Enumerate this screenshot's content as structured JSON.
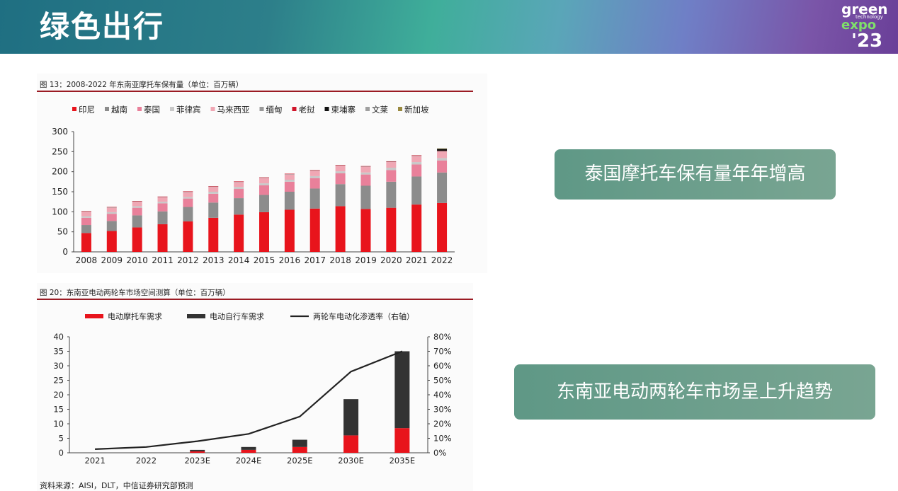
{
  "header": {
    "title": "绿色出行"
  },
  "logo": {
    "line1": "green",
    "line2": "technology",
    "line3": "expo",
    "line4": "'23"
  },
  "captions": {
    "first": "泰国摩托车保有量年年增高",
    "second": "东南亚电动两轮车市场呈上升趋势"
  },
  "source": "资料来源：AISI，DLT，中信证券研究部预测",
  "colors": {
    "印尼": "#e8141c",
    "越南": "#8c8c8c",
    "泰国": "#e9809a",
    "菲律宾": "#c8c8c8",
    "马来西亚": "#f0a7b4",
    "缅甸": "#999999",
    "老挝": "#d0152a",
    "柬埔寨": "#111111",
    "文莱": "#a0a0a0",
    "新加坡": "#9a8a40"
  },
  "chart_data": [
    {
      "type": "bar",
      "stacked": true,
      "title": "图 13：2008-2022 年东南亚摩托车保有量（单位：百万辆）",
      "ylim": [
        0,
        300
      ],
      "yticks": [
        0,
        50,
        100,
        150,
        200,
        250,
        300
      ],
      "categories": [
        "2008",
        "2009",
        "2010",
        "2011",
        "2012",
        "2013",
        "2014",
        "2015",
        "2016",
        "2017",
        "2018",
        "2019",
        "2020",
        "2021",
        "2022"
      ],
      "legend_position": "top",
      "series": [
        {
          "name": "印尼",
          "values": [
            47,
            52,
            61,
            69,
            76,
            85,
            93,
            99,
            105,
            108,
            114,
            107,
            110,
            118,
            122
          ]
        },
        {
          "name": "越南",
          "values": [
            20,
            25,
            30,
            32,
            36,
            38,
            41,
            43,
            45,
            50,
            55,
            58,
            65,
            70,
            76
          ]
        },
        {
          "name": "泰国",
          "values": [
            18,
            18,
            19,
            20,
            21,
            22,
            23,
            24,
            25,
            26,
            27,
            28,
            29,
            30,
            30
          ]
        },
        {
          "name": "菲律宾",
          "values": [
            4,
            4,
            4,
            4,
            4,
            5,
            5,
            5,
            5,
            5,
            5,
            5,
            6,
            6,
            6
          ]
        },
        {
          "name": "马来西亚",
          "values": [
            11,
            11,
            11,
            11,
            12,
            12,
            12,
            13,
            13,
            13,
            14,
            14,
            14,
            15,
            16
          ]
        },
        {
          "name": "缅甸",
          "values": [
            1,
            1,
            1,
            1,
            1,
            1,
            1,
            1,
            1,
            1,
            1,
            1,
            1,
            1,
            1
          ]
        },
        {
          "name": "老挝",
          "values": [
            1,
            1,
            1,
            1,
            1,
            1,
            1,
            1,
            1,
            1,
            1,
            1,
            1,
            1,
            1
          ]
        },
        {
          "name": "柬埔寨",
          "values": [
            0,
            0,
            0,
            0,
            0,
            0,
            0,
            0,
            0,
            0,
            0,
            0,
            0,
            0,
            5
          ]
        },
        {
          "name": "文莱",
          "values": [
            0,
            0,
            0,
            0,
            0,
            0,
            0,
            0,
            0,
            0,
            0,
            0,
            0,
            0,
            0
          ]
        },
        {
          "name": "新加坡",
          "values": [
            0,
            0,
            0,
            0,
            0,
            0,
            0,
            0,
            0,
            0,
            0,
            0,
            0,
            0,
            1
          ]
        }
      ]
    },
    {
      "type": "bar",
      "stacked": true,
      "title": "图 20：东南亚电动两轮车市场空间测算（单位：百万辆）",
      "ylim": [
        0,
        40
      ],
      "yticks": [
        0,
        5,
        10,
        15,
        20,
        25,
        30,
        35,
        40
      ],
      "y2lim": [
        0,
        80
      ],
      "y2ticks": [
        "0%",
        "10%",
        "20%",
        "30%",
        "40%",
        "50%",
        "60%",
        "70%",
        "80%"
      ],
      "categories": [
        "2021",
        "2022",
        "2023E",
        "2024E",
        "2025E",
        "2030E",
        "2035E"
      ],
      "legend_position": "top",
      "series": [
        {
          "name": "电动摩托车需求",
          "color": "#e8141c",
          "values": [
            0,
            0,
            0.5,
            1,
            2,
            6,
            8.5
          ]
        },
        {
          "name": "电动自行车需求",
          "color": "#333333",
          "values": [
            0,
            0,
            0.5,
            1,
            2.5,
            12.5,
            26.5
          ]
        }
      ],
      "line": {
        "name": "两轮车电动化渗透率（右轴）",
        "color": "#222222",
        "axis": "right",
        "values": [
          2.5,
          4,
          8,
          13,
          25,
          56,
          70
        ]
      }
    }
  ]
}
